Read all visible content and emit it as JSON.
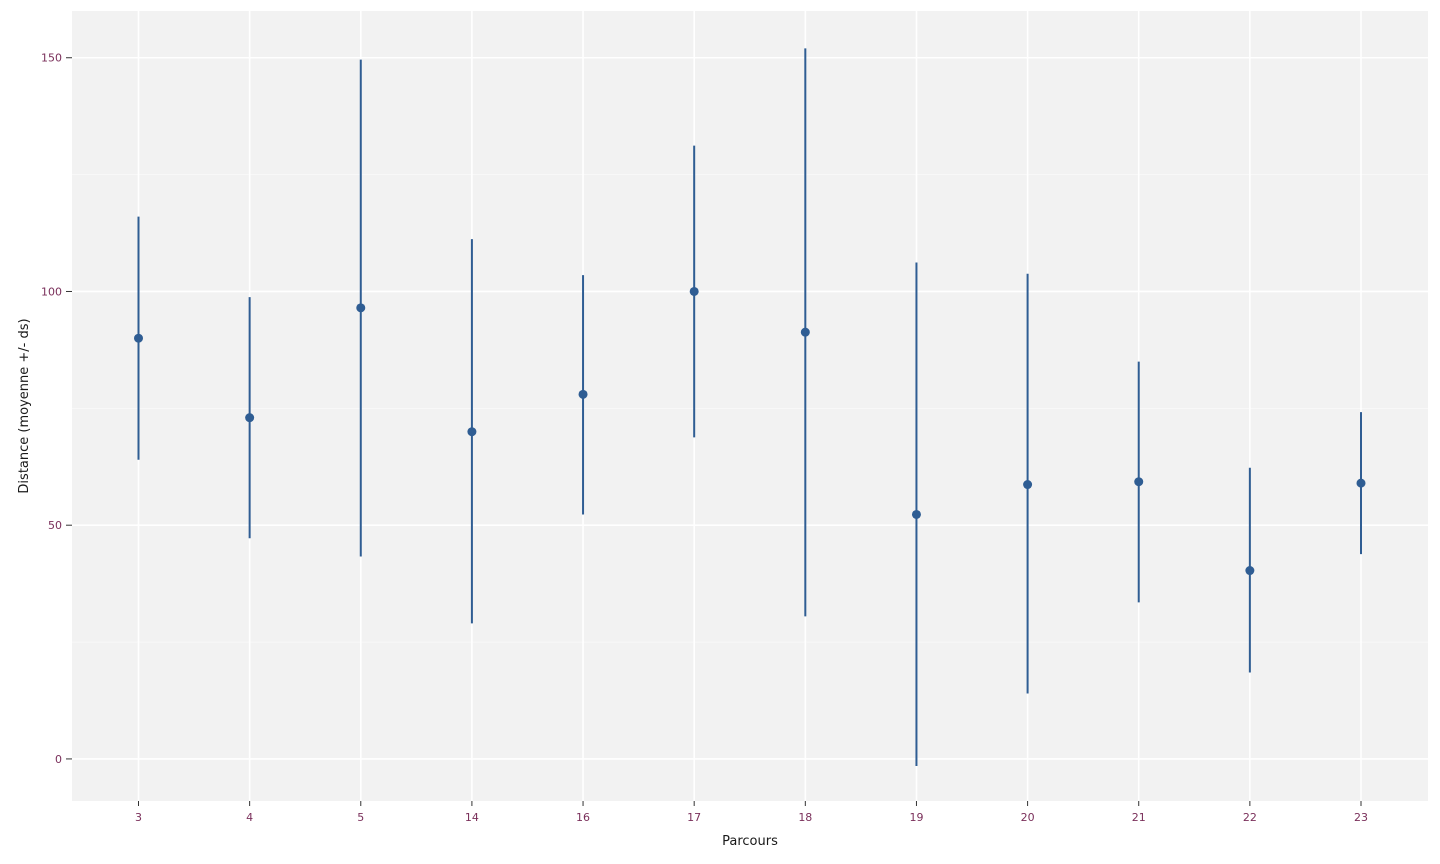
{
  "chart_data": {
    "type": "scatter",
    "title": "",
    "xlabel": "Parcours",
    "ylabel": "Distance (moyenne +/- ds)",
    "categories": [
      "3",
      "4",
      "5",
      "14",
      "16",
      "17",
      "18",
      "19",
      "20",
      "21",
      "22",
      "23"
    ],
    "series": [
      {
        "mean": [
          90,
          73,
          96.5,
          70,
          78,
          100,
          91.3,
          52.3,
          58.7,
          59.3,
          40.3,
          59
        ],
        "lower": [
          64,
          47.2,
          43.3,
          29,
          52.3,
          68.8,
          30.5,
          -1.5,
          14,
          33.5,
          18.5,
          43.8
        ],
        "upper": [
          116,
          98.8,
          149.6,
          111.2,
          103.5,
          131.2,
          152,
          106.2,
          103.8,
          85,
          62.3,
          74.2
        ]
      }
    ],
    "yticks": [
      0,
      50,
      100,
      150
    ],
    "ylim": [
      -9,
      160
    ],
    "grid": true,
    "colors": {
      "panel_background": "#f2f2f2",
      "grid_major": "#ffffff",
      "grid_minor": "#f8f8f8",
      "series": "#2f5d93",
      "tick_label": "#7a2f5a",
      "axis_title": "#1a1a1a"
    }
  }
}
